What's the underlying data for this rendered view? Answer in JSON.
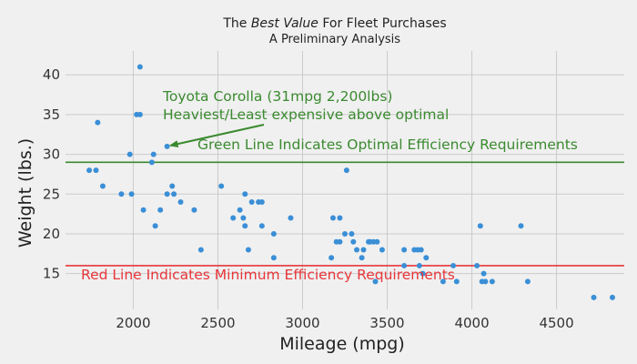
{
  "chart_data": {
    "type": "scatter",
    "title_prefix": "The ",
    "title_emph": "Best Value",
    "title_suffix": " For Fleet Purchases",
    "subtitle": "A Preliminary Analysis",
    "xlabel": "Mileage (mpg)",
    "ylabel": "Weight (lbs.)",
    "xlim": [
      1600,
      4900
    ],
    "ylim": [
      10.5,
      43
    ],
    "xticks": [
      2000,
      2500,
      3000,
      3500,
      4000,
      4500
    ],
    "yticks": [
      15,
      20,
      25,
      30,
      35,
      40
    ],
    "grid": true,
    "point_color": "#3a8fd6",
    "points": [
      [
        1740,
        28
      ],
      [
        1780,
        28
      ],
      [
        1790,
        34
      ],
      [
        1820,
        26
      ],
      [
        1930,
        25
      ],
      [
        1980,
        30
      ],
      [
        1990,
        25
      ],
      [
        2020,
        35
      ],
      [
        2040,
        35
      ],
      [
        2040,
        41
      ],
      [
        2060,
        23
      ],
      [
        2110,
        29
      ],
      [
        2120,
        30
      ],
      [
        2130,
        21
      ],
      [
        2160,
        23
      ],
      [
        2200,
        31
      ],
      [
        2200,
        25
      ],
      [
        2230,
        26
      ],
      [
        2240,
        25
      ],
      [
        2280,
        24
      ],
      [
        2360,
        23
      ],
      [
        2400,
        18
      ],
      [
        2520,
        26
      ],
      [
        2590,
        22
      ],
      [
        2630,
        23
      ],
      [
        2650,
        22
      ],
      [
        2660,
        21
      ],
      [
        2660,
        25
      ],
      [
        2680,
        18
      ],
      [
        2700,
        24
      ],
      [
        2740,
        24
      ],
      [
        2760,
        24
      ],
      [
        2760,
        21
      ],
      [
        2830,
        20
      ],
      [
        2830,
        17
      ],
      [
        2930,
        22
      ],
      [
        3170,
        17
      ],
      [
        3180,
        22
      ],
      [
        3200,
        19
      ],
      [
        3220,
        22
      ],
      [
        3220,
        19
      ],
      [
        3250,
        20
      ],
      [
        3260,
        28
      ],
      [
        3290,
        20
      ],
      [
        3300,
        19
      ],
      [
        3320,
        18
      ],
      [
        3350,
        17
      ],
      [
        3360,
        18
      ],
      [
        3390,
        19
      ],
      [
        3400,
        19
      ],
      [
        3420,
        19
      ],
      [
        3430,
        14
      ],
      [
        3440,
        19
      ],
      [
        3470,
        18
      ],
      [
        3600,
        18
      ],
      [
        3600,
        16
      ],
      [
        3660,
        18
      ],
      [
        3680,
        18
      ],
      [
        3690,
        16
      ],
      [
        3700,
        18
      ],
      [
        3710,
        15
      ],
      [
        3730,
        17
      ],
      [
        3830,
        14
      ],
      [
        3890,
        16
      ],
      [
        3910,
        14
      ],
      [
        4030,
        16
      ],
      [
        4050,
        21
      ],
      [
        4060,
        14
      ],
      [
        4070,
        15
      ],
      [
        4080,
        14
      ],
      [
        4120,
        14
      ],
      [
        4290,
        21
      ],
      [
        4330,
        14
      ],
      [
        4720,
        12
      ],
      [
        4830,
        12
      ]
    ],
    "reference_lines": [
      {
        "y": 29,
        "color": "#3a8a2f"
      },
      {
        "y": 16,
        "color": "#e8363a"
      }
    ],
    "annotations": {
      "corolla_line1": "Toyota Corolla (31mpg 2,200lbs)",
      "corolla_line2": "Heaviest/Least expensive above optimal",
      "corolla_color": "#3a8a2f",
      "corolla_point": [
        2200,
        31
      ],
      "green_label": "Green Line Indicates Optimal Efficiency Requirements",
      "green_color": "#3a8a2f",
      "red_label": "Red Line Indicates Minimum Efficiency Requirements",
      "red_color": "#e8363a"
    }
  }
}
